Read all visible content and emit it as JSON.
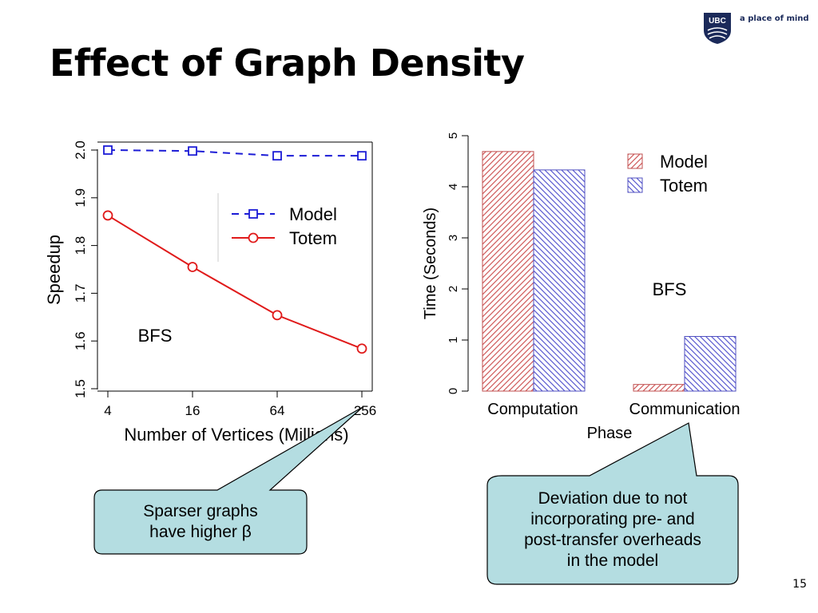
{
  "slide": {
    "title": "Effect of Graph Density",
    "page_number": "15"
  },
  "logo": {
    "mark_text": "UBC",
    "tagline": "a place of mind"
  },
  "callouts": {
    "left": {
      "lines": [
        "Sparser graphs",
        "have higher β"
      ]
    },
    "right": {
      "lines": [
        "Deviation due to not",
        "incorporating pre- and",
        "post-transfer overheads",
        "in the model"
      ]
    }
  },
  "colors": {
    "model": "#1c1cd6",
    "totem": "#e01a1a",
    "bar_model_stroke": "#cf5a5a",
    "bar_totem_stroke": "#5a5ad0",
    "callout_fill": "#b4dde1",
    "logo_navy": "#1b2a5a"
  },
  "chart_data": [
    {
      "type": "line",
      "xlabel": "Number of Vertices (Millions)",
      "ylabel": "Speedup",
      "x": [
        "4",
        "16",
        "64",
        "256"
      ],
      "x_scale": "log",
      "ylim": [
        1.5,
        2.0
      ],
      "yticks": [
        "1.5",
        "1.6",
        "1.7",
        "1.8",
        "1.9",
        "2.0"
      ],
      "annotation": "BFS",
      "legend_position": "top-right",
      "grid": false,
      "series": [
        {
          "name": "Model",
          "values": [
            2.0,
            1.998,
            1.988,
            1.988
          ],
          "marker": "square",
          "line": "dashed"
        },
        {
          "name": "Totem",
          "values": [
            1.863,
            1.755,
            1.654,
            1.584
          ],
          "marker": "circle",
          "line": "solid"
        }
      ]
    },
    {
      "type": "bar",
      "xlabel": "Phase",
      "ylabel": "Time (Seconds)",
      "categories": [
        "Computation",
        "Communication"
      ],
      "ylim": [
        0,
        5
      ],
      "yticks": [
        "0",
        "1",
        "2",
        "3",
        "4",
        "5"
      ],
      "annotation": "BFS",
      "legend_position": "top-right",
      "grid": false,
      "series": [
        {
          "name": "Model",
          "values": [
            4.69,
            0.13
          ],
          "fill": "diagonal-hatch"
        },
        {
          "name": "Totem",
          "values": [
            4.33,
            1.07
          ],
          "fill": "diagonal-hatch"
        }
      ]
    }
  ]
}
